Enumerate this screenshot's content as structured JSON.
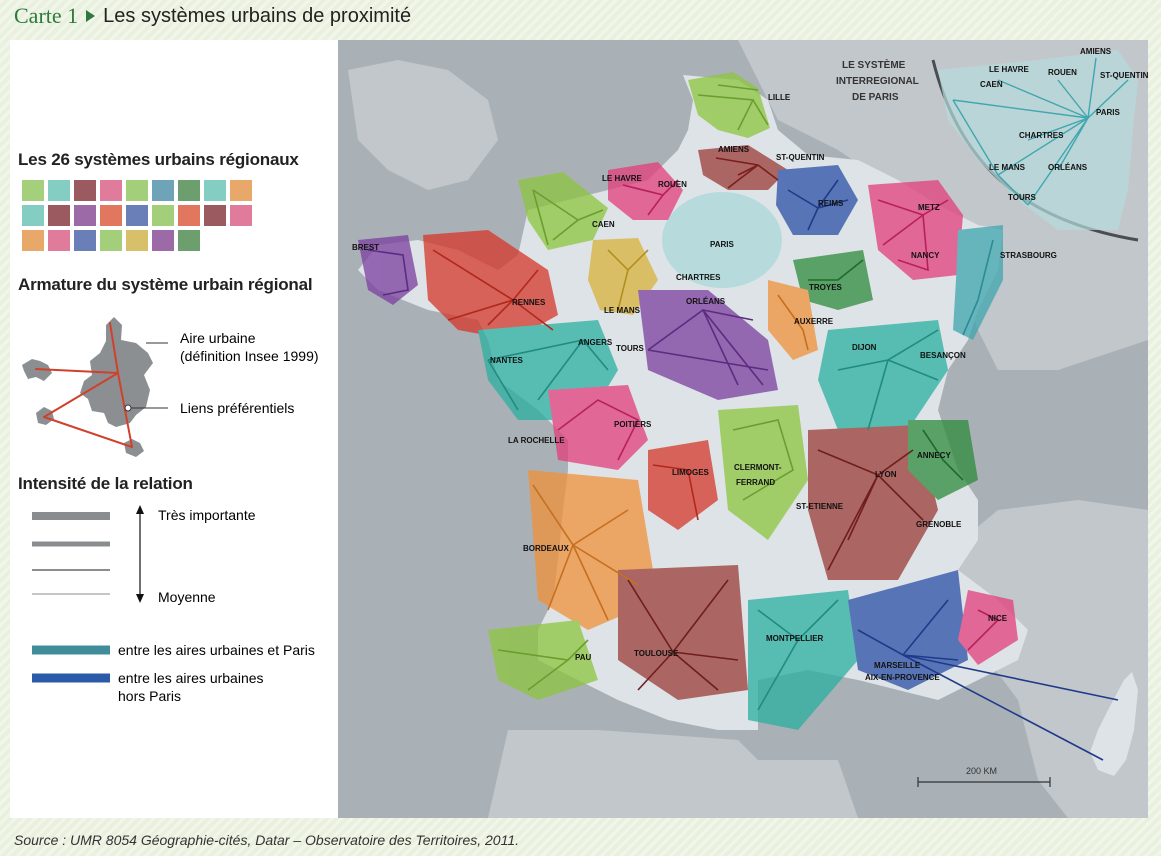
{
  "title": {
    "kicker": "Carte 1",
    "text": "Les systèmes urbains de proximité"
  },
  "source": "Source : UMR 8054 Géographie-cités, Datar – Observatoire des Territoires, 2011.",
  "legend": {
    "systems_heading": "Les 26 systèmes urbains régionaux",
    "swatch_colors": [
      "#a4d07b",
      "#83cdc3",
      "#9b5a5f",
      "#e07b9b",
      "#a3cf7a",
      "#6fa3b8",
      "#6d9f6e",
      "#83cdc3",
      "#e8a86a",
      "#83cdc3",
      "#9b5a5f",
      "#9d6aa8",
      "#e0775e",
      "#6a7fb8",
      "#a3cf7a",
      "#e0775e",
      "#9b5a5f",
      "#e07b9b",
      "#e8a86a",
      "#e07b9b",
      "#6a7fb8",
      "#a3cf7a",
      "#d8c06a",
      "#9d6aa8",
      "#6d9f6e"
    ],
    "armature_heading": "Armature du système urbain régional",
    "aire_urbaine": "Aire urbaine",
    "aire_urbaine_def": "(définition Insee 1999)",
    "liens": "Liens préférentiels",
    "intensity_heading": "Intensité de la relation",
    "tres_importante": "Très importante",
    "moyenne": "Moyenne",
    "paris_link": "entre les aires urbaines et Paris",
    "hors_paris_line1": "entre les aires urbaines",
    "hors_paris_line2": "hors Paris",
    "colors": {
      "paris": "#3f8c9b",
      "hors_paris": "#2b5aa8",
      "intensity": "#8a8d90",
      "link": "#d0402b"
    }
  },
  "map": {
    "inset_title_1": "LE SYSTÈME",
    "inset_title_2": "INTERREGIONAL",
    "inset_title_3": "DE PARIS",
    "scale_label": "200 KM",
    "colors": {
      "sea": "#aab1b6",
      "land": "#dde3e6",
      "foreign": "#c2c7cb",
      "paris_area": "#b7dbdc",
      "inset": "#3fa6b0"
    },
    "cities": [
      {
        "name": "LILLE",
        "color": "#8cc63f"
      },
      {
        "name": "AMIENS",
        "color": "#9b3b36"
      },
      {
        "name": "ST-QUENTIN",
        "color": "#9b3b36"
      },
      {
        "name": "LE HAVRE",
        "color": "#e23e7c"
      },
      {
        "name": "ROUEN",
        "color": "#e23e7c"
      },
      {
        "name": "CAEN",
        "color": "#8cc63f"
      },
      {
        "name": "REIMS",
        "color": "#2b4fa8"
      },
      {
        "name": "METZ",
        "color": "#e23e7c"
      },
      {
        "name": "NANCY",
        "color": "#e23e7c"
      },
      {
        "name": "STRASBOURG",
        "color": "#3fa6b0"
      },
      {
        "name": "BREST",
        "color": "#7b3fa0"
      },
      {
        "name": "RENNES",
        "color": "#d6372a"
      },
      {
        "name": "PARIS",
        "color": "#3fa6b0"
      },
      {
        "name": "CHARTRES",
        "color": "#d9b23c"
      },
      {
        "name": "LE MANS",
        "color": "#d9b23c"
      },
      {
        "name": "ORLÉANS",
        "color": "#7b3fa0"
      },
      {
        "name": "TROYES",
        "color": "#2e8b3d"
      },
      {
        "name": "AUXERRE",
        "color": "#f0913a"
      },
      {
        "name": "NANTES",
        "color": "#2bb0a0"
      },
      {
        "name": "ANGERS",
        "color": "#2bb0a0"
      },
      {
        "name": "TOURS",
        "color": "#7b3fa0"
      },
      {
        "name": "DIJON",
        "color": "#2bb0a0"
      },
      {
        "name": "BESANÇON",
        "color": "#2bb0a0"
      },
      {
        "name": "LA ROCHELLE",
        "color": "#e23e7c"
      },
      {
        "name": "POITIERS",
        "color": "#e23e7c"
      },
      {
        "name": "LIMOGES",
        "color": "#d6372a"
      },
      {
        "name": "CLERMONT-",
        "color": "#8cc63f"
      },
      {
        "name": "FERRAND",
        "color": "#8cc63f"
      },
      {
        "name": "ANNECY",
        "color": "#2e8b3d"
      },
      {
        "name": "LYON",
        "color": "#9b3b36"
      },
      {
        "name": "ST-ETIENNE",
        "color": "#9b3b36"
      },
      {
        "name": "GRENOBLE",
        "color": "#9b3b36"
      },
      {
        "name": "BORDEAUX",
        "color": "#f0913a"
      },
      {
        "name": "PAU",
        "color": "#8cc63f"
      },
      {
        "name": "TOULOUSE",
        "color": "#9b3b36"
      },
      {
        "name": "MONTPELLIER",
        "color": "#2bb0a0"
      },
      {
        "name": "NICE",
        "color": "#e23e7c"
      },
      {
        "name": "MARSEILLE",
        "color": "#2b4fa8"
      },
      {
        "name": "AIX-EN-PROVENCE",
        "color": "#2b4fa8"
      }
    ],
    "inset_cities": [
      "AMIENS",
      "LE HAVRE",
      "ROUEN",
      "ST-QUENTIN",
      "CAEN",
      "PARIS",
      "CHARTRES",
      "LE MANS",
      "ORLÉANS",
      "TOURS"
    ]
  }
}
